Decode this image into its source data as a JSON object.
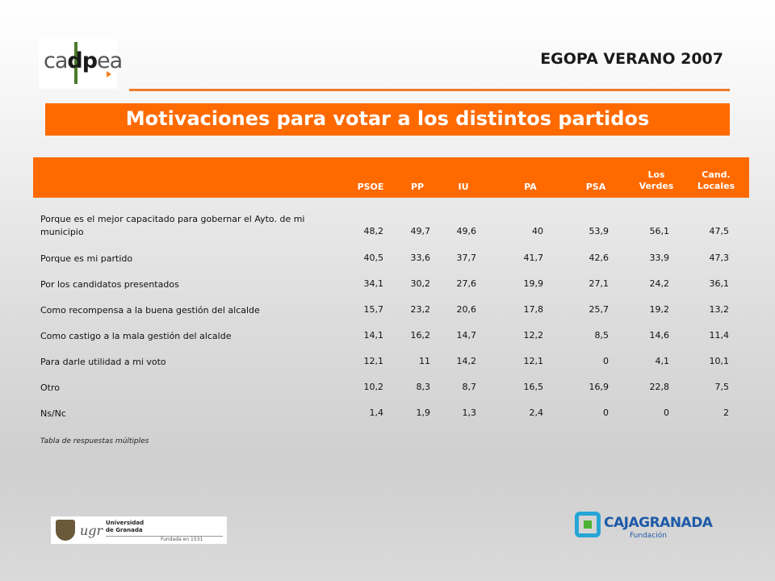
{
  "header": {
    "logo_text": "cadpea",
    "edition": "EGOPA VERANO 2007",
    "title": "Motivaciones para votar a los distintos partidos"
  },
  "table": {
    "columns": [
      "PSOE",
      "PP",
      "IU",
      "PA",
      "PSA",
      "Los\nVerdes",
      "Cand.\nLocales"
    ],
    "rows": [
      {
        "label": "Porque es el mejor capacitado para gobernar el Ayto. de mi municipio",
        "values": [
          "48,2",
          "49,7",
          "49,6",
          "40",
          "53,9",
          "56,1",
          "47,5"
        ]
      },
      {
        "label": "Porque es mi partido",
        "values": [
          "40,5",
          "33,6",
          "37,7",
          "41,7",
          "42,6",
          "33,9",
          "47,3"
        ]
      },
      {
        "label": "Por los candidatos presentados",
        "values": [
          "34,1",
          "30,2",
          "27,6",
          "19,9",
          "27,1",
          "24,2",
          "36,1"
        ]
      },
      {
        "label": "Como recompensa a la buena gestión del alcalde",
        "values": [
          "15,7",
          "23,2",
          "20,6",
          "17,8",
          "25,7",
          "19,2",
          "13,2"
        ]
      },
      {
        "label": "Como castigo a la mala gestión del alcalde",
        "values": [
          "14,1",
          "16,2",
          "14,7",
          "12,2",
          "8,5",
          "14,6",
          "11,4"
        ]
      },
      {
        "label": "Para darle utilidad a mi voto",
        "values": [
          "12,1",
          "11",
          "14,2",
          "12,1",
          "0",
          "4,1",
          "10,1"
        ]
      },
      {
        "label": "Otro",
        "values": [
          "10,2",
          "8,3",
          "8,7",
          "16,5",
          "16,9",
          "22,8",
          "7,5"
        ]
      },
      {
        "label": "Ns/Nc",
        "values": [
          "1,4",
          "1,9",
          "1,3",
          "2,4",
          "0",
          "0",
          "2"
        ]
      }
    ],
    "note": "Tabla de respuestas múltiples"
  },
  "footer": {
    "ugr_mark": "ugr",
    "ugr_name": "Universidad\nde Granada",
    "ugr_founded": "Fundada en 1531",
    "caja_name": "CAJAGRANADA",
    "caja_sub": "Fundación"
  },
  "colors": {
    "accent": "#ff6a00",
    "text": "#111111"
  }
}
